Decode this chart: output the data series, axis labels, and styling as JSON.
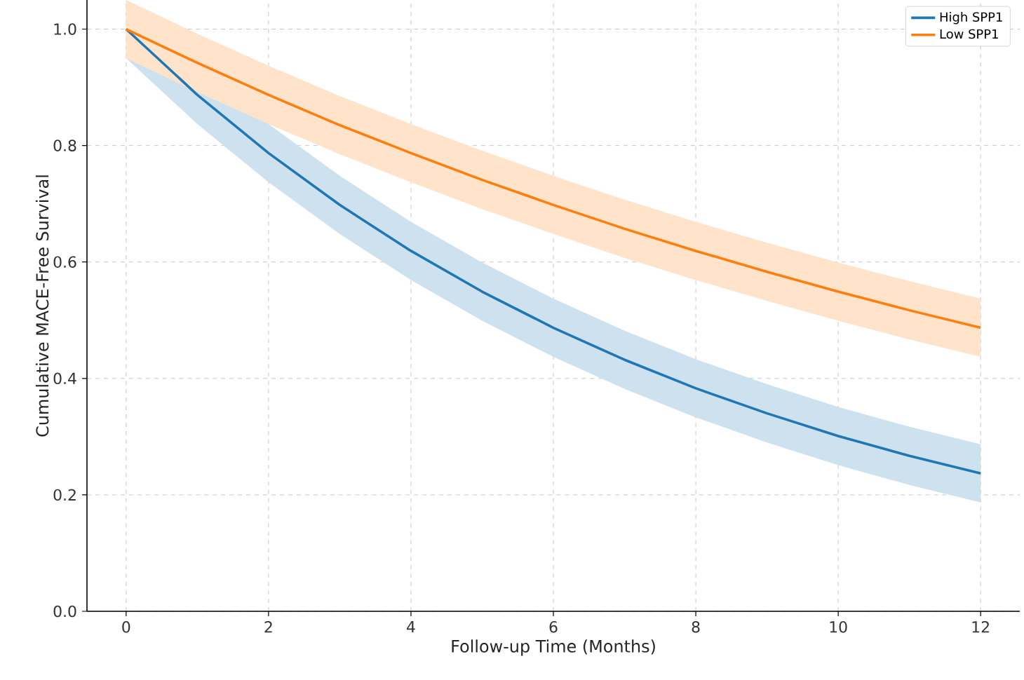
{
  "chart_data": {
    "type": "line",
    "xlabel": "Follow-up Time (Months)",
    "ylabel": "Cumulative MACE-Free Survival",
    "x": [
      0,
      1,
      2,
      3,
      4,
      5,
      6,
      7,
      8,
      9,
      10,
      11,
      12
    ],
    "series": [
      {
        "name": "High SPP1",
        "color": "#1f77b4",
        "values": [
          1.0,
          0.887,
          0.787,
          0.698,
          0.619,
          0.549,
          0.487,
          0.432,
          0.383,
          0.34,
          0.301,
          0.267,
          0.237
        ],
        "lower": [
          0.95,
          0.837,
          0.737,
          0.648,
          0.569,
          0.499,
          0.437,
          0.382,
          0.333,
          0.29,
          0.251,
          0.217,
          0.187
        ],
        "upper": [
          1.05,
          0.937,
          0.837,
          0.748,
          0.669,
          0.599,
          0.537,
          0.482,
          0.433,
          0.39,
          0.351,
          0.317,
          0.287
        ]
      },
      {
        "name": "Low SPP1",
        "color": "#ff7f0e",
        "values": [
          1.0,
          0.942,
          0.887,
          0.835,
          0.787,
          0.741,
          0.698,
          0.657,
          0.619,
          0.583,
          0.549,
          0.517,
          0.487
        ],
        "lower": [
          0.95,
          0.892,
          0.837,
          0.785,
          0.737,
          0.691,
          0.648,
          0.607,
          0.569,
          0.533,
          0.499,
          0.467,
          0.437
        ],
        "upper": [
          1.05,
          0.992,
          0.937,
          0.885,
          0.837,
          0.791,
          0.748,
          0.707,
          0.669,
          0.633,
          0.599,
          0.567,
          0.537
        ]
      }
    ],
    "xlim": [
      -0.55,
      12.55
    ],
    "ylim": [
      0,
      1.05
    ],
    "xticks": [
      0,
      2,
      4,
      6,
      8,
      10,
      12
    ],
    "yticks": [
      {
        "value": 0,
        "label": "0.0"
      },
      {
        "value": 0.2,
        "label": "0.2"
      },
      {
        "value": 0.4,
        "label": "0.4"
      },
      {
        "value": 0.6,
        "label": "0.6"
      },
      {
        "value": 0.8,
        "label": "0.8"
      },
      {
        "value": 1,
        "label": "1.0"
      }
    ],
    "grid": true,
    "legend": "top right",
    "marker": "none",
    "line_style": "solid"
  }
}
